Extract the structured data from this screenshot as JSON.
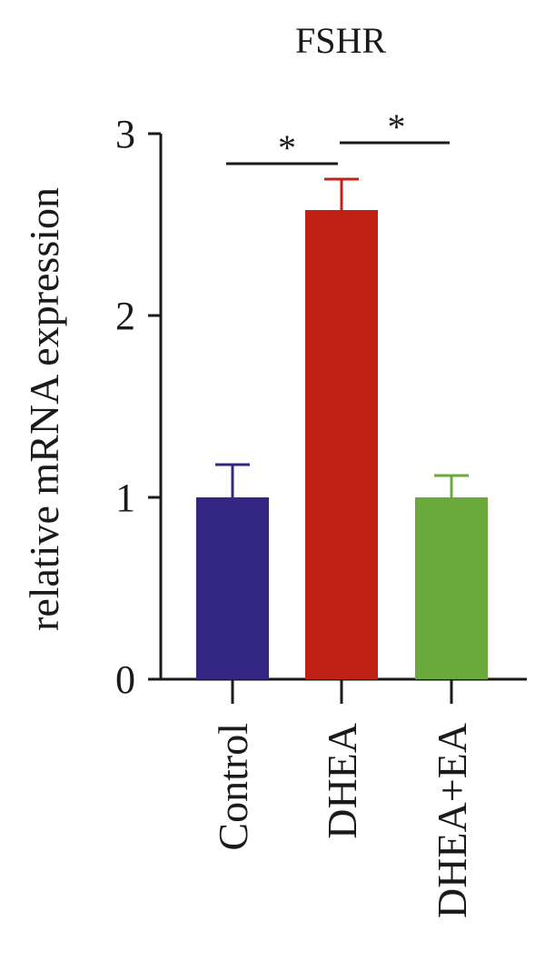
{
  "chart_data": {
    "type": "bar",
    "title": "FSHR",
    "xlabel": "",
    "ylabel": "relative mRNA expression",
    "categories": [
      "Control",
      "DHEA",
      "DHEA+EA"
    ],
    "values": [
      1.0,
      2.58,
      1.0
    ],
    "errors": [
      0.18,
      0.17,
      0.12
    ],
    "colors": [
      "#332783",
      "#c12216",
      "#6aaa3c"
    ],
    "ylim": [
      0,
      3
    ],
    "yticks": [
      "0",
      "1",
      "2",
      "3"
    ],
    "significance": [
      {
        "from": "Control",
        "to": "DHEA",
        "label": "*"
      },
      {
        "from": "DHEA",
        "to": "DHEA+EA",
        "label": "*"
      }
    ]
  }
}
